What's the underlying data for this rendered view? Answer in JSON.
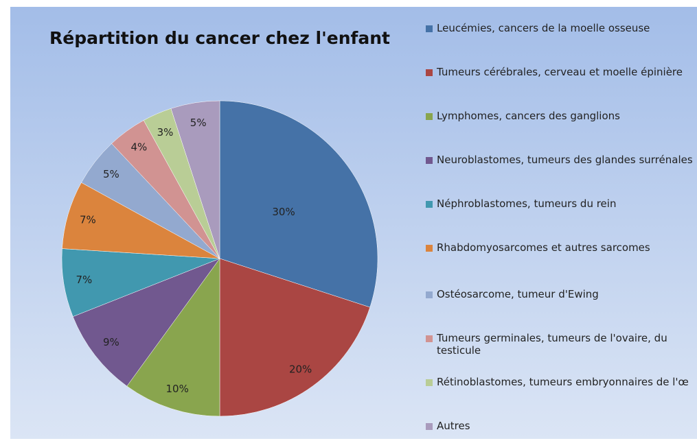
{
  "chart_data": {
    "type": "pie",
    "title": "Répartition du cancer chez l'enfant",
    "categories": [
      "Leucémies, cancers de la moelle osseuse",
      "Tumeurs cérébrales, cerveau et moelle épinière",
      "Lymphomes, cancers des ganglions",
      "Neuroblastomes, tumeurs des glandes surrénales",
      "Néphroblastomes, tumeurs du rein",
      "Rhabdomyosarcomes et autres sarcomes",
      "Ostéosarcome, tumeur d'Ewing",
      "Tumeurs germinales, tumeurs de l'ovaire, du testicule",
      "Rétinoblastomes, tumeurs embryonnaires de l'œ",
      "Autres"
    ],
    "values": [
      30,
      20,
      10,
      9,
      7,
      7,
      5,
      4,
      3,
      5
    ],
    "value_labels": [
      "30%",
      "20%",
      "10%",
      "9%",
      "7%",
      "7%",
      "5%",
      "4%",
      "3%",
      "5%"
    ],
    "colors": [
      "#4572a7",
      "#aa4643",
      "#89a54e",
      "#71588f",
      "#4198af",
      "#db843d",
      "#93a9cf",
      "#d19392",
      "#b9cd96",
      "#a99bbd"
    ],
    "legend": "right"
  }
}
